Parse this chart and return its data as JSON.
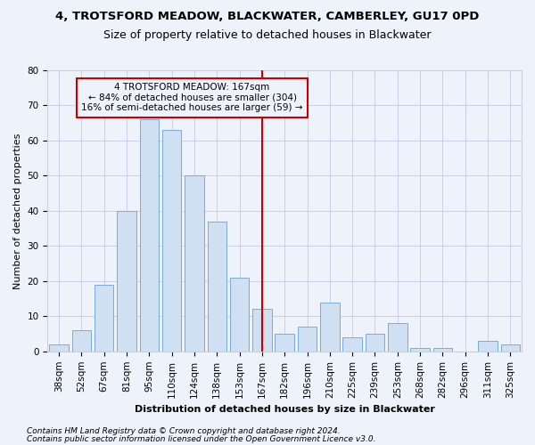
{
  "title1": "4, TROTSFORD MEADOW, BLACKWATER, CAMBERLEY, GU17 0PD",
  "title2": "Size of property relative to detached houses in Blackwater",
  "xlabel": "Distribution of detached houses by size in Blackwater",
  "ylabel": "Number of detached properties",
  "categories": [
    "38sqm",
    "52sqm",
    "67sqm",
    "81sqm",
    "95sqm",
    "110sqm",
    "124sqm",
    "138sqm",
    "153sqm",
    "167sqm",
    "182sqm",
    "196sqm",
    "210sqm",
    "225sqm",
    "239sqm",
    "253sqm",
    "268sqm",
    "282sqm",
    "296sqm",
    "311sqm",
    "325sqm"
  ],
  "values": [
    2,
    6,
    19,
    40,
    66,
    63,
    50,
    37,
    21,
    12,
    5,
    7,
    14,
    4,
    5,
    8,
    1,
    1,
    0,
    3,
    2
  ],
  "bar_color": "#cfe0f3",
  "bar_edge_color": "#7aabda",
  "highlight_index": 9,
  "ylim": [
    0,
    80
  ],
  "yticks": [
    0,
    10,
    20,
    30,
    40,
    50,
    60,
    70,
    80
  ],
  "annotation_title": "4 TROTSFORD MEADOW: 167sqm",
  "annotation_line1": "← 84% of detached houses are smaller (304)",
  "annotation_line2": "16% of semi-detached houses are larger (59) →",
  "footer1": "Contains HM Land Registry data © Crown copyright and database right 2024.",
  "footer2": "Contains public sector information licensed under the Open Government Licence v3.0.",
  "background_color": "#eef2fb",
  "grid_color": "#c8cfe8",
  "box_color": "#cc0000",
  "title1_fontsize": 9.5,
  "title2_fontsize": 9,
  "axis_label_fontsize": 8,
  "tick_fontsize": 7.5,
  "annotation_fontsize": 7.5,
  "footer_fontsize": 6.5
}
